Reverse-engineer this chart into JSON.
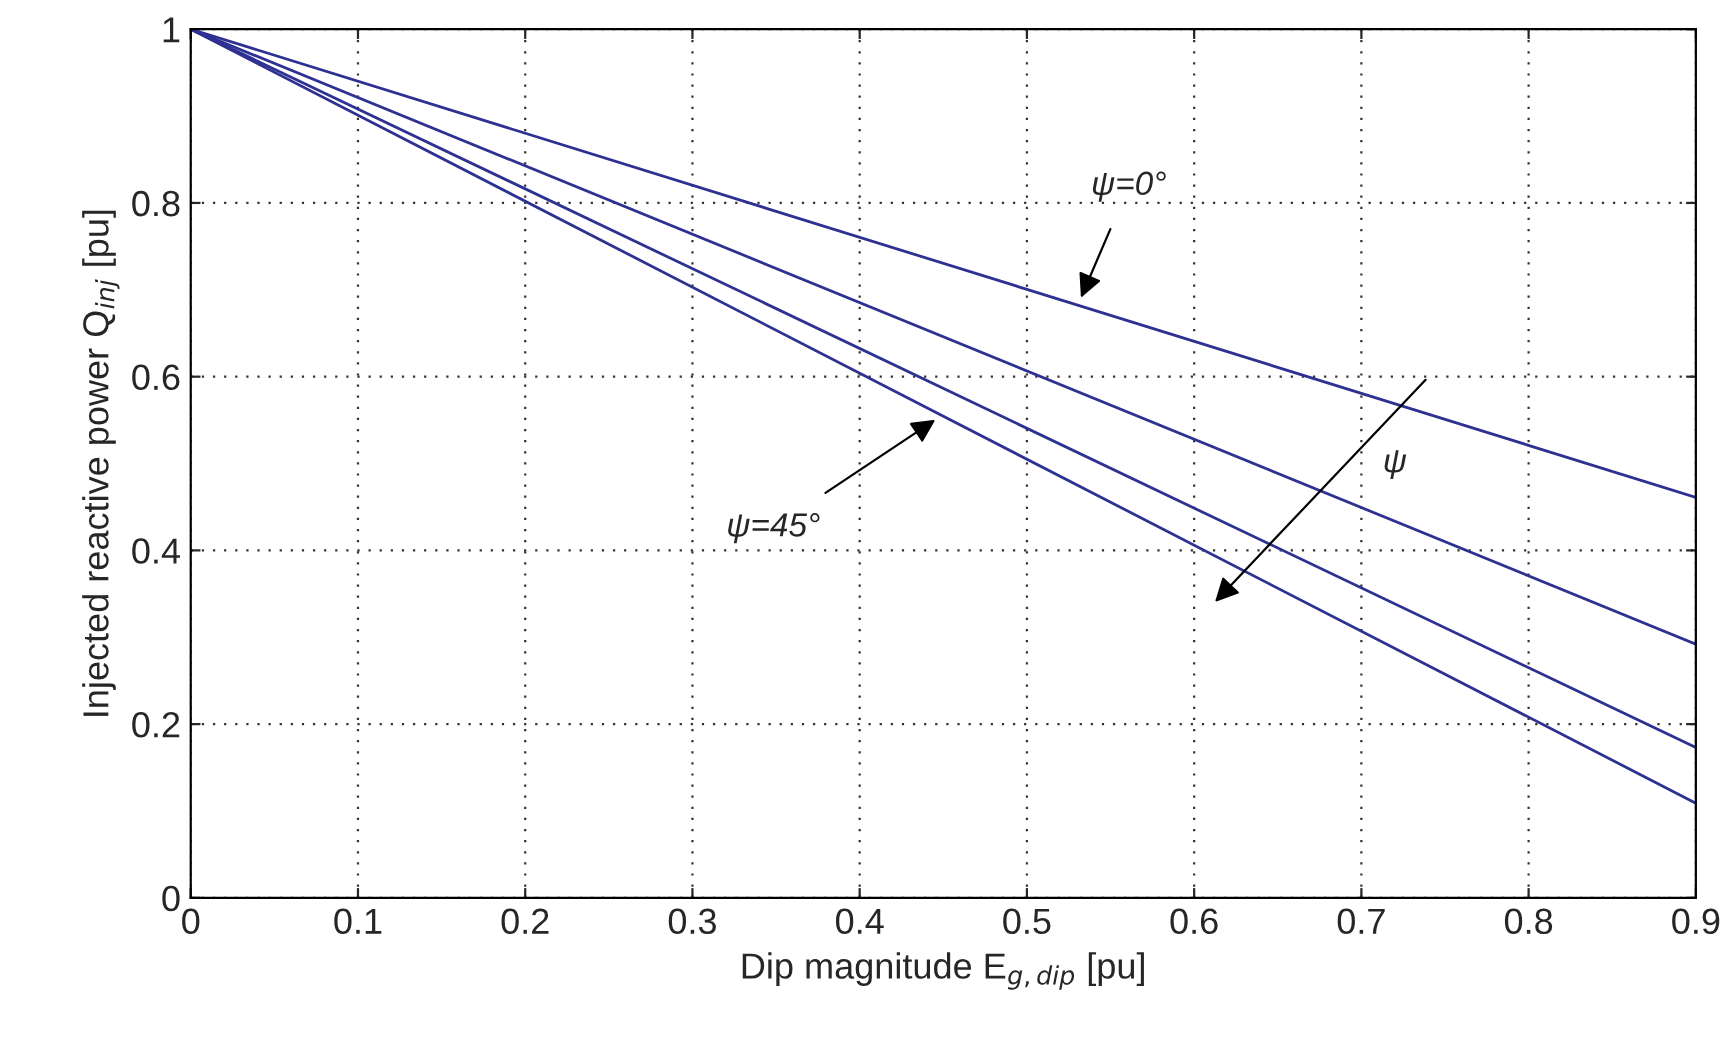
{
  "chart_data": {
    "type": "line",
    "xlabel": "Dip magnitude E$_{g,dip}$ [pu]",
    "ylabel": "Injected reactive power Q$_{inj}$ [pu]",
    "x": [
      0,
      0.9
    ],
    "series": [
      {
        "color": "#2e3192",
        "values": [
          1,
          0.461
        ]
      },
      {
        "color": "#2e3192",
        "values": [
          1,
          0.292
        ]
      },
      {
        "color": "#2e3192",
        "values": [
          1,
          0.173
        ]
      },
      {
        "color": "#2e3192",
        "values": [
          1,
          0.109
        ]
      }
    ],
    "annotations": [
      {
        "text": "ψ=0°",
        "x": 0.531,
        "y": 0.685
      },
      {
        "text": "ψ=45°",
        "x": 0.448,
        "y": 0.554
      },
      "ψ"
    ],
    "xlim": [
      0,
      0.9
    ],
    "ylim": [
      0,
      1
    ],
    "xticks": [
      0,
      0.1,
      0.2,
      0.3,
      0.4,
      0.5,
      0.6,
      0.7,
      0.8,
      0.9
    ],
    "yticks": [
      0,
      0.2,
      0.4,
      0.6,
      0.8,
      1
    ],
    "grid": true,
    "line_style": "solid",
    "marker": "none"
  }
}
